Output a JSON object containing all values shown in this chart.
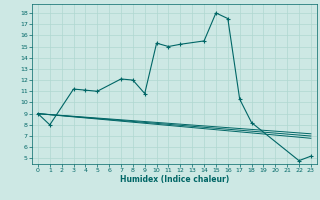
{
  "xlabel": "Humidex (Indice chaleur)",
  "background_color": "#cde8e4",
  "grid_color": "#b0d8d0",
  "line_color": "#006666",
  "xlim": [
    -0.5,
    23.5
  ],
  "ylim": [
    4.5,
    18.8
  ],
  "xticks": [
    0,
    1,
    2,
    3,
    4,
    5,
    6,
    7,
    8,
    9,
    10,
    11,
    12,
    13,
    14,
    15,
    16,
    17,
    18,
    19,
    20,
    21,
    22,
    23
  ],
  "yticks": [
    5,
    6,
    7,
    8,
    9,
    10,
    11,
    12,
    13,
    14,
    15,
    16,
    17,
    18
  ],
  "main_x": [
    0,
    1,
    3,
    4,
    5,
    7,
    8,
    9,
    10,
    11,
    12,
    14,
    15,
    16,
    17,
    18,
    22,
    23
  ],
  "main_y": [
    9.0,
    8.0,
    11.2,
    11.1,
    11.0,
    12.1,
    12.0,
    10.8,
    15.3,
    15.0,
    15.2,
    15.5,
    18.0,
    17.5,
    10.3,
    8.2,
    4.8,
    5.2
  ],
  "reg_lines": [
    {
      "x": [
        0,
        23
      ],
      "y": [
        9.0,
        7.2
      ]
    },
    {
      "x": [
        0,
        23
      ],
      "y": [
        9.0,
        6.8
      ]
    },
    {
      "x": [
        0,
        23
      ],
      "y": [
        9.0,
        7.0
      ]
    }
  ]
}
